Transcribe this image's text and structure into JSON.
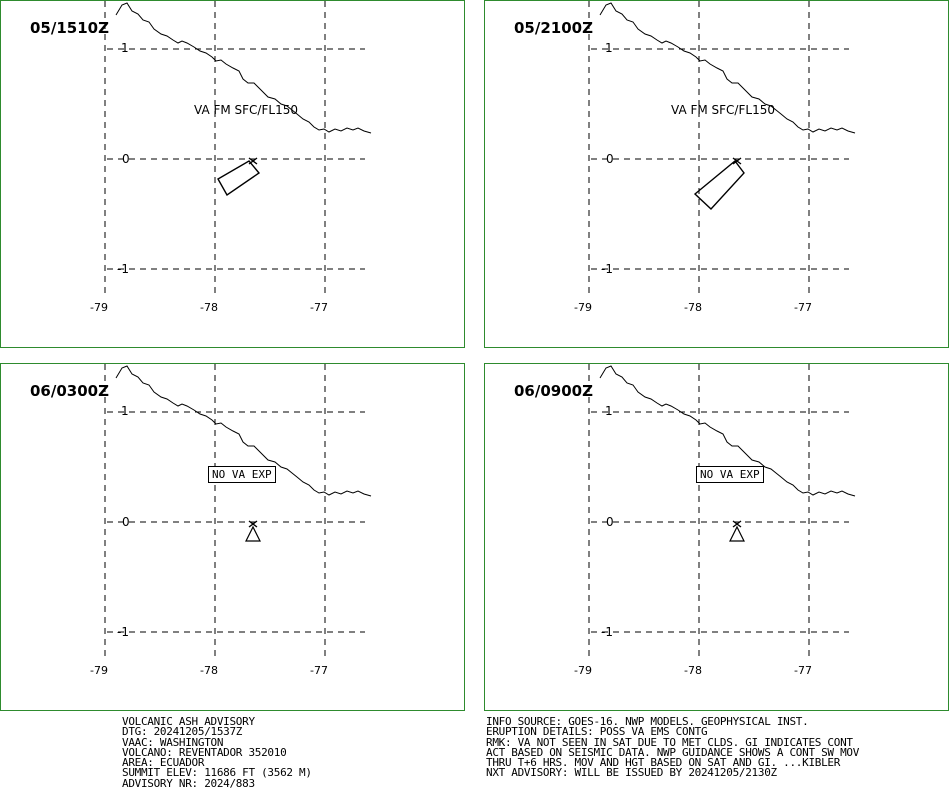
{
  "panels": [
    {
      "time": "05/1510Z",
      "label": "VA FM SFC/FL150",
      "mode": "ash",
      "poly": [
        [
          248,
          160
        ],
        [
          258,
          172
        ],
        [
          226,
          194
        ],
        [
          217,
          178
        ]
      ]
    },
    {
      "time": "05/2100Z",
      "label": "VA FM SFC/FL150",
      "mode": "ash",
      "poly": [
        [
          250,
          160
        ],
        [
          259,
          172
        ],
        [
          226,
          208
        ],
        [
          210,
          193
        ]
      ]
    },
    {
      "time": "06/0300Z",
      "label": "NO VA EXP",
      "mode": "none",
      "poly": []
    },
    {
      "time": "06/0900Z",
      "label": "NO VA EXP",
      "mode": "none",
      "poly": []
    }
  ],
  "axes": {
    "lat_labels": [
      "1",
      "0",
      "-1"
    ],
    "lon_labels": [
      "-79",
      "-78",
      "-77"
    ]
  },
  "advisory_left": [
    "VOLCANIC ASH ADVISORY",
    "DTG: 20241205/1537Z",
    "VAAC: WASHINGTON",
    "VOLCANO: REVENTADOR 352010",
    "AREA: ECUADOR",
    "SUMMIT ELEV: 11686 FT (3562 M)",
    "ADVISORY NR: 2024/883"
  ],
  "advisory_right": [
    "INFO SOURCE: GOES-16. NWP MODELS. GEOPHYSICAL INST.",
    "ERUPTION DETAILS: POSS VA EMS CONTG",
    "RMK: VA NOT SEEN IN SAT DUE TO MET CLDS. GI INDICATES CONT",
    "ACT BASED ON SEISMIC DATA. NWP GUIDANCE SHOWS A CONT SW MOV",
    "THRU T+6 HRS. MOV AND HGT BASED ON SAT AND GI. ...KIBLER",
    "NXT ADVISORY: WILL BE ISSUED BY 20241205/2130Z"
  ],
  "colors": {
    "frame": "#2e8b2e",
    "ink": "#000000"
  }
}
